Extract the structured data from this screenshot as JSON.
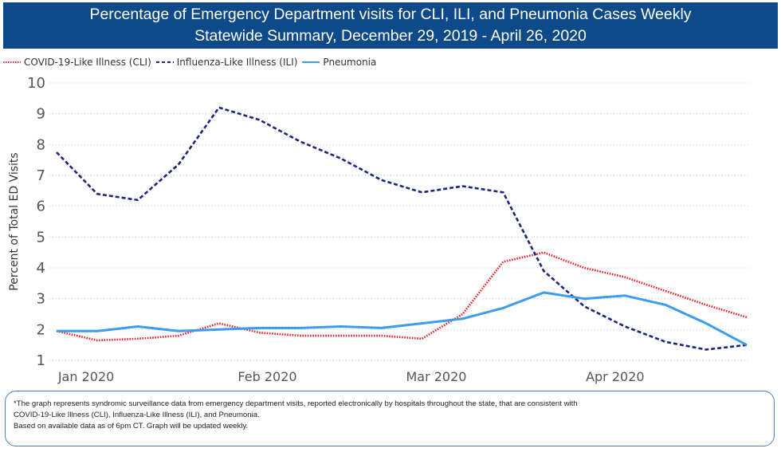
{
  "title_line1": "Percentage of Emergency Department visits for CLI, ILI, and Pneumonia Cases Weekly",
  "title_line2": "Statewide Summary, December 29, 2019 - April 26, 2020",
  "chart_data": {
    "type": "line",
    "title": "Percentage of Emergency Department visits for CLI, ILI, and Pneumonia Cases Weekly Statewide Summary, December 29, 2019 - April 26, 2020",
    "xlabel": "",
    "ylabel": "Percent of Total ED Visits",
    "ylim": [
      1,
      10
    ],
    "yticks": [
      1,
      2,
      3,
      4,
      5,
      6,
      7,
      8,
      9,
      10
    ],
    "xticks": [
      {
        "label": "Jan 2020",
        "date": "2020-01-01"
      },
      {
        "label": "Feb 2020",
        "date": "2020-02-01"
      },
      {
        "label": "Mar 2020",
        "date": "2020-03-01"
      },
      {
        "label": "Apr 2020",
        "date": "2020-04-01"
      }
    ],
    "grid": true,
    "legend_position": "top-left",
    "x": [
      "2019-12-29",
      "2020-01-05",
      "2020-01-12",
      "2020-01-19",
      "2020-01-26",
      "2020-02-02",
      "2020-02-09",
      "2020-02-16",
      "2020-02-23",
      "2020-03-01",
      "2020-03-08",
      "2020-03-15",
      "2020-03-22",
      "2020-03-29",
      "2020-04-05",
      "2020-04-12",
      "2020-04-19",
      "2020-04-26"
    ],
    "series": [
      {
        "name": "COVID-19-Like Illness (CLI)",
        "color": "#e8202a",
        "style": "dotted",
        "values": [
          1.95,
          1.65,
          1.7,
          1.8,
          2.2,
          1.9,
          1.8,
          1.8,
          1.8,
          1.7,
          2.5,
          4.2,
          4.5,
          4.0,
          3.7,
          3.25,
          2.8,
          2.4
        ]
      },
      {
        "name": "Influenza-Like Illness (ILI)",
        "color": "#1c2580",
        "style": "dashed",
        "values": [
          7.75,
          6.4,
          6.2,
          7.35,
          9.2,
          8.8,
          8.1,
          7.55,
          6.85,
          6.45,
          6.65,
          6.45,
          3.9,
          2.75,
          2.1,
          1.6,
          1.35,
          1.5
        ]
      },
      {
        "name": "Pneumonia",
        "color": "#3d9bf0",
        "style": "solid",
        "values": [
          1.95,
          1.95,
          2.1,
          1.95,
          2.0,
          2.05,
          2.05,
          2.1,
          2.05,
          2.2,
          2.35,
          2.7,
          3.2,
          3.0,
          3.1,
          2.8,
          2.2,
          1.5
        ]
      }
    ]
  },
  "footnote_line1": "*The graph represents syndromic surveillance data from emergency department visits, reported electronically by hospitals throughout the state, that are consistent with",
  "footnote_line2": "COVID-19-Like Illness (CLI), Influenza-Like Illness (ILI), and Pneumonia.",
  "footnote_line3": "Based on available data as of 6pm CT.  Graph will be updated weekly."
}
